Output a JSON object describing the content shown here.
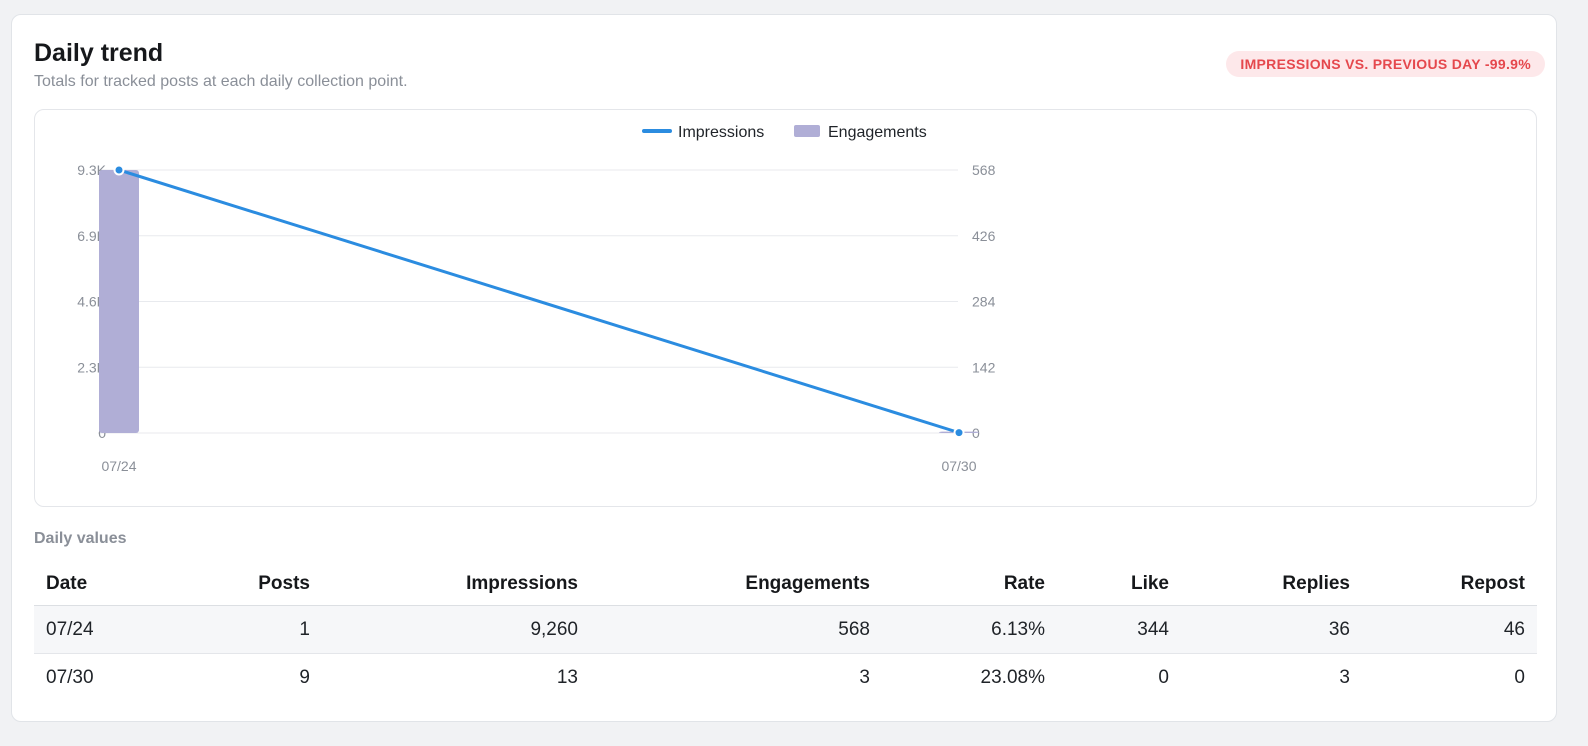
{
  "header": {
    "title": "Daily trend",
    "subtitle": "Totals for tracked posts at each daily collection point.",
    "badge": "IMPRESSIONS VS. PREVIOUS DAY -99.9%"
  },
  "colors": {
    "line": "#2b8ce0",
    "bar": "#b0aed6",
    "badge_text": "#e5484d",
    "badge_bg": "#fde8ea"
  },
  "chart_data": {
    "type": "bar",
    "categories": [
      "07/24",
      "07/30"
    ],
    "series": [
      {
        "name": "Impressions",
        "type": "line",
        "axis": "left",
        "values": [
          9260,
          13
        ]
      },
      {
        "name": "Engagements",
        "type": "bar",
        "axis": "right",
        "values": [
          568,
          3
        ]
      }
    ],
    "legend": [
      "Impressions",
      "Engagements"
    ],
    "legend_position": "top",
    "y_left_ticks": [
      "0",
      "2.3K",
      "4.6K",
      "6.9K",
      "9.3K"
    ],
    "y_left_range": [
      0,
      9260
    ],
    "y_right_ticks": [
      "0",
      "142",
      "284",
      "426",
      "568"
    ],
    "y_right_range": [
      0,
      568
    ],
    "grid": true
  },
  "table": {
    "label": "Daily values",
    "columns": [
      "Date",
      "Posts",
      "Impressions",
      "Engagements",
      "Rate",
      "Like",
      "Replies",
      "Repost"
    ],
    "rows": [
      [
        "07/24",
        "1",
        "9,260",
        "568",
        "6.13%",
        "344",
        "36",
        "46"
      ],
      [
        "07/30",
        "9",
        "13",
        "3",
        "23.08%",
        "0",
        "3",
        "0"
      ]
    ]
  }
}
